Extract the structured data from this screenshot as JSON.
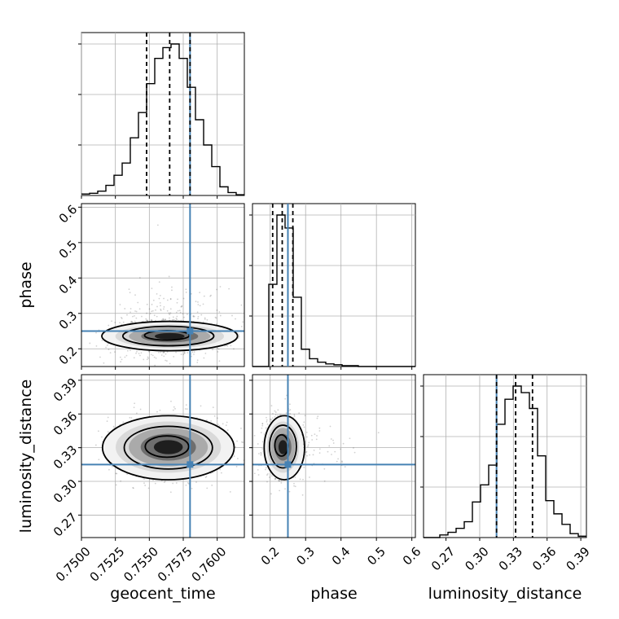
{
  "chart_data": {
    "type": "corner",
    "parameters": [
      "geocent_time",
      "phase",
      "luminosity_distance"
    ],
    "axis_labels": {
      "geocent_time": "geocent_time",
      "phase": "phase",
      "luminosity_distance": "luminosity_distance"
    },
    "ranges": {
      "geocent_time": [
        0.75,
        0.762
      ],
      "phase": [
        0.15,
        0.61
      ],
      "luminosity_distance": [
        0.25,
        0.395
      ]
    },
    "ticks": {
      "geocent_time": [
        {
          "value": 0.75,
          "label": "0.7500"
        },
        {
          "value": 0.7525,
          "label": "0.7525"
        },
        {
          "value": 0.755,
          "label": "0.7550"
        },
        {
          "value": 0.7575,
          "label": "0.7575"
        },
        {
          "value": 0.76,
          "label": "0.7600"
        }
      ],
      "phase": [
        {
          "value": 0.2,
          "label": "0.2"
        },
        {
          "value": 0.3,
          "label": "0.3"
        },
        {
          "value": 0.4,
          "label": "0.4"
        },
        {
          "value": 0.5,
          "label": "0.5"
        },
        {
          "value": 0.6,
          "label": "0.6"
        }
      ],
      "luminosity_distance": [
        {
          "value": 0.27,
          "label": "0.27"
        },
        {
          "value": 0.3,
          "label": "0.30"
        },
        {
          "value": 0.33,
          "label": "0.33"
        },
        {
          "value": 0.36,
          "label": "0.36"
        },
        {
          "value": 0.39,
          "label": "0.39"
        }
      ]
    },
    "truths": {
      "geocent_time": 0.758,
      "phase": 0.25,
      "luminosity_distance": 0.315
    },
    "truth_color": "#4682b4",
    "contour_color": "#000000",
    "grid": true,
    "histograms": {
      "geocent_time": {
        "bin_edges": [
          0.75,
          0.7506,
          0.7512,
          0.7518,
          0.7524,
          0.753,
          0.7536,
          0.7542,
          0.7548,
          0.7554,
          0.756,
          0.7566,
          0.7572,
          0.7578,
          0.7584,
          0.759,
          0.7596,
          0.7602,
          0.7608,
          0.7614,
          0.762
        ],
        "counts": [
          2,
          3,
          6,
          14,
          28,
          45,
          80,
          115,
          155,
          190,
          205,
          210,
          190,
          150,
          105,
          70,
          40,
          12,
          4,
          1
        ],
        "quantiles": [
          0.7548,
          0.7565,
          0.758
        ]
      },
      "phase": {
        "bin_edges": [
          0.15,
          0.173,
          0.196,
          0.219,
          0.242,
          0.265,
          0.288,
          0.311,
          0.334,
          0.357,
          0.38,
          0.403,
          0.426,
          0.449,
          0.472,
          0.495,
          0.518,
          0.541,
          0.564,
          0.587,
          0.61
        ],
        "counts": [
          0,
          0,
          95,
          175,
          160,
          80,
          20,
          9,
          5,
          3,
          2,
          1,
          1,
          0,
          0,
          0,
          0,
          0,
          0,
          0
        ],
        "quantiles": [
          0.207,
          0.234,
          0.264
        ]
      },
      "luminosity_distance": {
        "bin_edges": [
          0.25,
          0.25725,
          0.2645,
          0.27175,
          0.279,
          0.28625,
          0.2935,
          0.30075,
          0.308,
          0.31525,
          0.3225,
          0.32975,
          0.337,
          0.34425,
          0.3515,
          0.35875,
          0.366,
          0.37325,
          0.3805,
          0.38775,
          0.395
        ],
        "counts": [
          0,
          0,
          2,
          4,
          7,
          12,
          27,
          40,
          55,
          86,
          105,
          115,
          110,
          98,
          62,
          28,
          18,
          10,
          3,
          1
        ],
        "quantiles": [
          0.315,
          0.332,
          0.347
        ]
      }
    },
    "panels": [
      {
        "x": "geocent_time",
        "y": "phase",
        "mean": [
          0.7565,
          0.235
        ],
        "std": [
          0.0022,
          0.028
        ],
        "corr": 0.0,
        "contours": [
          {
            "cx": 0.7563,
            "cy": 0.238,
            "rx": 0.00165,
            "ry": 0.0135
          },
          {
            "cx": 0.7564,
            "cy": 0.236,
            "rx": 0.00335,
            "ry": 0.0275
          },
          {
            "cx": 0.7565,
            "cy": 0.236,
            "rx": 0.005,
            "ry": 0.0415
          }
        ]
      },
      {
        "x": "geocent_time",
        "y": "luminosity_distance",
        "mean": [
          0.7564,
          0.331
        ],
        "std": [
          0.0022,
          0.014
        ],
        "corr": 0.0,
        "contours": [
          {
            "cx": 0.7563,
            "cy": 0.331,
            "rx": 0.0016,
            "ry": 0.0095
          },
          {
            "cx": 0.7564,
            "cy": 0.33,
            "rx": 0.00325,
            "ry": 0.019
          },
          {
            "cx": 0.7564,
            "cy": 0.33,
            "rx": 0.00485,
            "ry": 0.0285
          }
        ]
      },
      {
        "x": "phase",
        "y": "luminosity_distance",
        "mean": [
          0.232,
          0.331
        ],
        "std": [
          0.025,
          0.014
        ],
        "corr": 0.0,
        "contours": [
          {
            "cx": 0.232,
            "cy": 0.332,
            "rx": 0.019,
            "ry": 0.0095
          },
          {
            "cx": 0.236,
            "cy": 0.331,
            "rx": 0.038,
            "ry": 0.019
          },
          {
            "cx": 0.24,
            "cy": 0.33,
            "rx": 0.057,
            "ry": 0.0285
          }
        ]
      }
    ]
  }
}
